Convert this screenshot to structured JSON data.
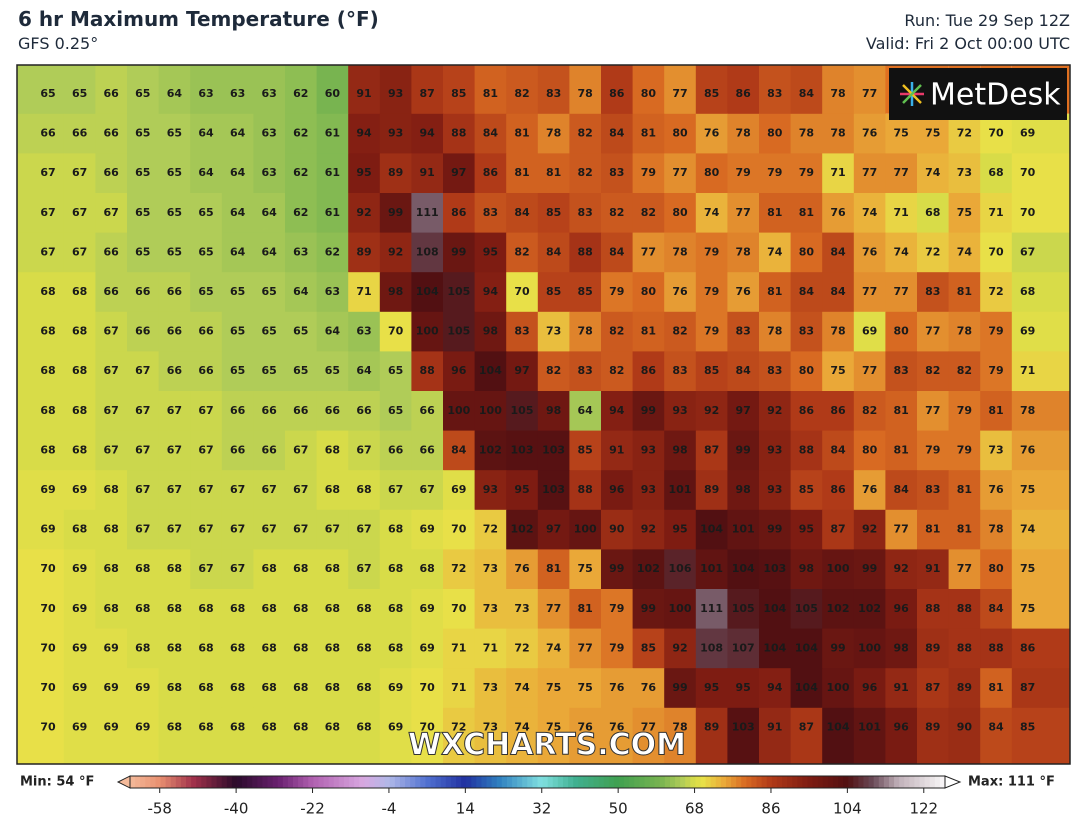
{
  "header": {
    "title": "6 hr Maximum Temperature (°F)",
    "model": "GFS 0.25°",
    "run": "Run: Tue 29 Sep 12Z",
    "valid": "Valid: Fri 2 Oct 00:00 UTC"
  },
  "logo": "MetDesk",
  "watermark": "WXCHARTS.COM",
  "grid": {
    "rows": [
      [
        65,
        65,
        66,
        65,
        64,
        63,
        63,
        63,
        62,
        60,
        91,
        93,
        87,
        85,
        81,
        82,
        83,
        78,
        86,
        80,
        77,
        85,
        86,
        83,
        84,
        78,
        77,
        null,
        null,
        null,
        null,
        null
      ],
      [
        66,
        66,
        66,
        65,
        65,
        64,
        64,
        63,
        62,
        61,
        94,
        93,
        94,
        88,
        84,
        81,
        78,
        82,
        84,
        81,
        80,
        76,
        78,
        80,
        78,
        78,
        76,
        75,
        75,
        72,
        70,
        69
      ],
      [
        67,
        67,
        66,
        65,
        65,
        64,
        64,
        63,
        62,
        61,
        95,
        89,
        91,
        97,
        86,
        81,
        81,
        82,
        83,
        79,
        77,
        80,
        79,
        79,
        79,
        71,
        77,
        77,
        74,
        73,
        68,
        70
      ],
      [
        67,
        67,
        67,
        65,
        65,
        65,
        64,
        64,
        62,
        61,
        92,
        99,
        111,
        86,
        83,
        84,
        85,
        83,
        82,
        82,
        80,
        74,
        77,
        81,
        81,
        76,
        74,
        71,
        68,
        75,
        71,
        70
      ],
      [
        67,
        67,
        66,
        65,
        65,
        65,
        64,
        64,
        63,
        62,
        89,
        92,
        108,
        99,
        95,
        82,
        84,
        88,
        84,
        77,
        78,
        79,
        78,
        74,
        80,
        84,
        76,
        74,
        72,
        74,
        70,
        67
      ],
      [
        68,
        68,
        66,
        66,
        66,
        65,
        65,
        65,
        64,
        63,
        71,
        98,
        104,
        105,
        94,
        70,
        85,
        85,
        79,
        80,
        76,
        79,
        76,
        81,
        84,
        84,
        77,
        77,
        83,
        81,
        72,
        68
      ],
      [
        68,
        68,
        67,
        66,
        66,
        66,
        65,
        65,
        65,
        64,
        63,
        70,
        100,
        105,
        98,
        83,
        73,
        78,
        82,
        81,
        82,
        79,
        83,
        78,
        83,
        78,
        69,
        80,
        77,
        78,
        79,
        69
      ],
      [
        68,
        68,
        67,
        67,
        66,
        66,
        65,
        65,
        65,
        65,
        64,
        65,
        88,
        96,
        104,
        97,
        82,
        83,
        82,
        86,
        83,
        85,
        84,
        83,
        80,
        75,
        77,
        83,
        82,
        82,
        79,
        71
      ],
      [
        68,
        68,
        67,
        67,
        67,
        67,
        66,
        66,
        66,
        66,
        66,
        65,
        66,
        100,
        100,
        105,
        98,
        64,
        94,
        99,
        93,
        92,
        97,
        92,
        86,
        86,
        82,
        81,
        77,
        79,
        81,
        78
      ],
      [
        68,
        68,
        67,
        67,
        67,
        67,
        66,
        66,
        67,
        68,
        67,
        66,
        66,
        84,
        102,
        103,
        103,
        85,
        91,
        93,
        98,
        87,
        99,
        93,
        88,
        84,
        80,
        81,
        79,
        79,
        73,
        76
      ],
      [
        69,
        69,
        68,
        67,
        67,
        67,
        67,
        67,
        67,
        68,
        68,
        67,
        67,
        69,
        93,
        95,
        103,
        88,
        96,
        93,
        101,
        89,
        98,
        93,
        85,
        86,
        76,
        84,
        83,
        81,
        76,
        75
      ],
      [
        69,
        68,
        68,
        67,
        67,
        67,
        67,
        67,
        67,
        67,
        67,
        68,
        69,
        70,
        72,
        102,
        97,
        100,
        90,
        92,
        95,
        104,
        101,
        99,
        95,
        87,
        92,
        77,
        81,
        81,
        78,
        74
      ],
      [
        70,
        69,
        68,
        68,
        68,
        67,
        67,
        68,
        68,
        68,
        67,
        68,
        68,
        72,
        73,
        76,
        81,
        75,
        99,
        102,
        106,
        101,
        104,
        103,
        98,
        100,
        99,
        92,
        91,
        77,
        80,
        75
      ],
      [
        70,
        69,
        68,
        68,
        68,
        68,
        68,
        68,
        68,
        68,
        68,
        68,
        69,
        70,
        73,
        73,
        77,
        81,
        79,
        99,
        100,
        111,
        105,
        104,
        105,
        102,
        102,
        96,
        88,
        88,
        84,
        75
      ],
      [
        70,
        69,
        69,
        68,
        68,
        68,
        68,
        68,
        68,
        68,
        68,
        68,
        69,
        71,
        71,
        72,
        74,
        77,
        79,
        85,
        92,
        108,
        107,
        104,
        104,
        99,
        100,
        98,
        89,
        88,
        88,
        86
      ],
      [
        70,
        69,
        69,
        69,
        68,
        68,
        68,
        68,
        68,
        68,
        68,
        69,
        70,
        71,
        73,
        74,
        75,
        75,
        76,
        76,
        99,
        95,
        95,
        94,
        104,
        100,
        96,
        91,
        87,
        89,
        81,
        87
      ],
      [
        70,
        69,
        69,
        69,
        68,
        68,
        68,
        68,
        68,
        68,
        68,
        69,
        70,
        72,
        73,
        74,
        75,
        76,
        76,
        77,
        78,
        89,
        103,
        91,
        87,
        104,
        101,
        96,
        89,
        90,
        84,
        85
      ]
    ]
  },
  "legend": {
    "min_label": "Min: 54 °F",
    "max_label": "Max: 111 °F",
    "range": [
      -65,
      127
    ],
    "ticks": [
      -58,
      -40,
      -22,
      -4,
      14,
      32,
      50,
      68,
      86,
      104,
      122
    ]
  }
}
